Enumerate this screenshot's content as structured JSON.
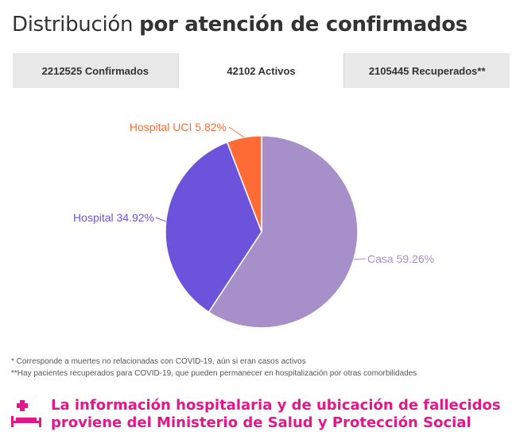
{
  "header": {
    "title_regular": "Distribución",
    "title_bold": "por atención de confirmados"
  },
  "tabs": [
    {
      "label": "2212525 Confirmados",
      "active": false
    },
    {
      "label": "42102 Activos",
      "active": true
    },
    {
      "label": "2105445 Recuperados**",
      "active": false
    }
  ],
  "chart_data": {
    "type": "pie",
    "slices": [
      {
        "label": "Casa 59.26%",
        "name": "Casa",
        "value": 59.26,
        "color": "#a78fca"
      },
      {
        "label": "Hospital 34.92%",
        "name": "Hospital",
        "value": 34.92,
        "color": "#6b53dc"
      },
      {
        "label": "Hospital UCI 5.82%",
        "name": "Hospital UCI",
        "value": 5.82,
        "color": "#ff6b35"
      }
    ]
  },
  "notes": {
    "line1": "* Corresponde a muertes no relacionadas con COVID-19, aún si eran casos activos",
    "line2": "**Hay pacientes recuperados para COVID-19, que pueden permanecer en hospitalización por otras comorbilidades"
  },
  "footer": {
    "line1": "La información hospitalaria y de ubicación de fallecidos",
    "line2": "proviene del Ministerio de Salud y Protección Social",
    "color": "#e0188a"
  }
}
